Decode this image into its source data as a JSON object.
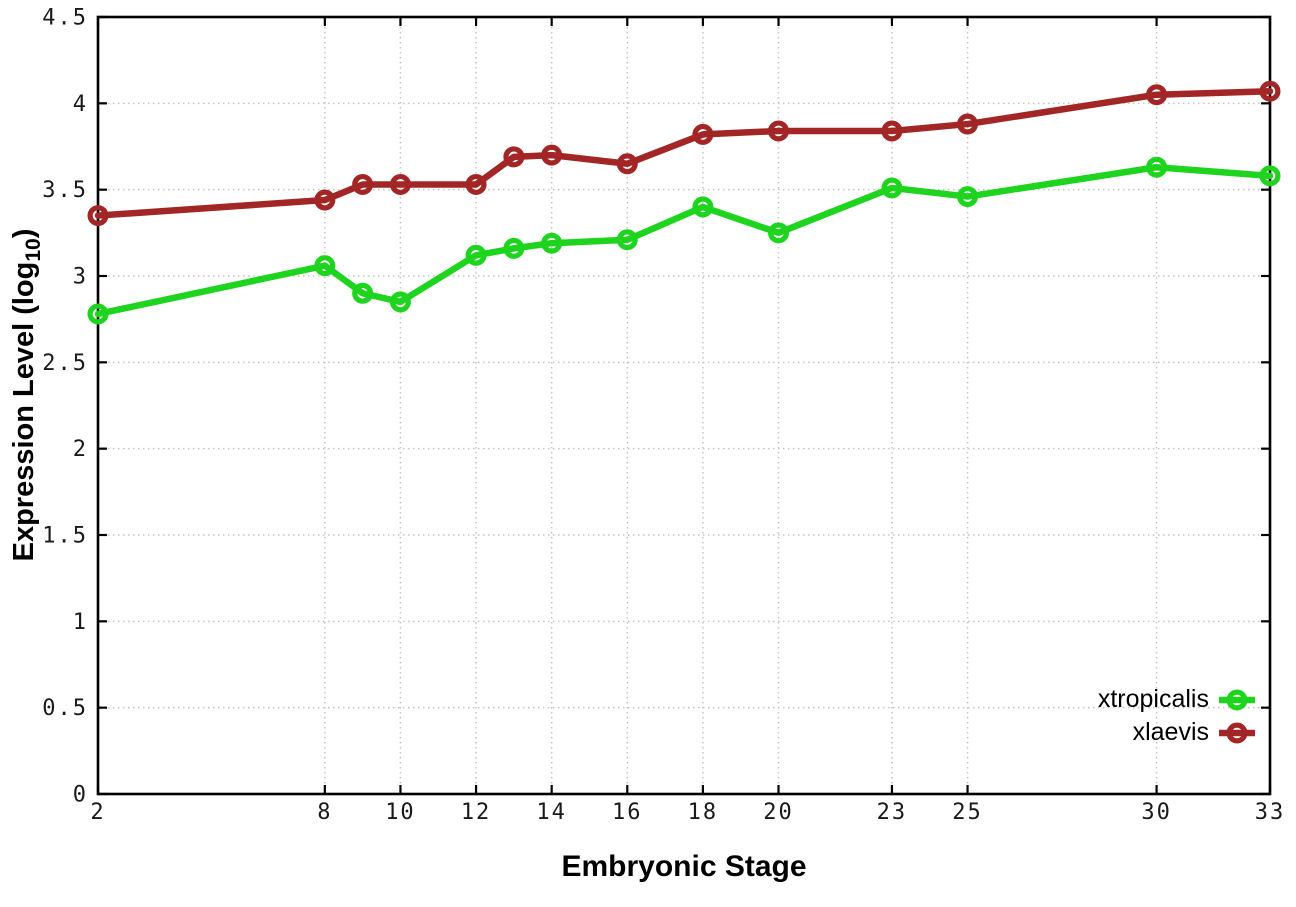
{
  "chart_data": {
    "type": "line",
    "title": "",
    "xlabel": "Embryonic Stage",
    "ylabel": "Expression Level (log10)",
    "ylabel_prefix": "Expression Level (log",
    "ylabel_sub": "10",
    "ylabel_suffix": ")",
    "xlim": [
      2,
      33
    ],
    "ylim": [
      0,
      4.5
    ],
    "x_ticks": [
      2,
      8,
      10,
      12,
      14,
      16,
      18,
      20,
      23,
      25,
      30,
      33
    ],
    "y_ticks": [
      0,
      0.5,
      1,
      1.5,
      2,
      2.5,
      3,
      3.5,
      4,
      4.5
    ],
    "grid": true,
    "legend_position": "bottom-right",
    "x": [
      2,
      8,
      9,
      10,
      12,
      13,
      14,
      16,
      18,
      20,
      23,
      25,
      30,
      33
    ],
    "series": [
      {
        "name": "xtropicalis",
        "color": "#1ed41e",
        "values": [
          2.78,
          3.06,
          2.9,
          2.85,
          3.12,
          3.16,
          3.19,
          3.21,
          3.4,
          3.25,
          3.51,
          3.46,
          3.63,
          3.58
        ]
      },
      {
        "name": "xlaevis",
        "color": "#a32626",
        "values": [
          3.35,
          3.44,
          3.53,
          3.53,
          3.53,
          3.69,
          3.7,
          3.65,
          3.82,
          3.84,
          3.84,
          3.88,
          4.05,
          4.07
        ]
      }
    ],
    "colors": {
      "frame": "#000000",
      "grid": "#c4c4c4",
      "tick_text": "#1a1a1a"
    }
  }
}
